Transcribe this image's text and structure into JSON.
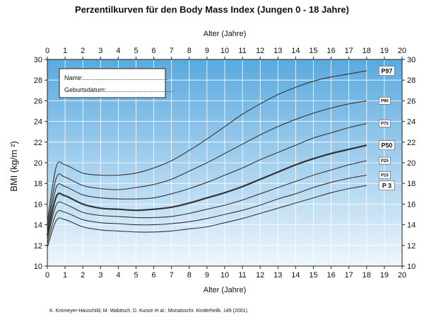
{
  "title": "Perzentilkurven für den Body Mass Index (Jungen 0 - 18 Jahre)",
  "citation": "K. Kromeyer-Hauschild, M. Wabitsch, D. Kunze et al.: Monatsschr. Kinderheilk. 149 (2001).",
  "info_box": {
    "name_label": "Name:................................................",
    "birthdate_label": "Geburtsdatum:......................................"
  },
  "colors": {
    "plot_top": "#5aa9df",
    "plot_bottom": "#eef6fc",
    "curve": "#333333",
    "grid": "#ffffff"
  },
  "chart_data": {
    "type": "line",
    "title": "Perzentilkurven für den Body Mass Index (Jungen 0 - 18 Jahre)",
    "xlabel": "Alter (Jahre)",
    "xlabel_top": "Alter (Jahre)",
    "ylabel": "BMI (kg/m ²)",
    "xlim": [
      0,
      20
    ],
    "ylim": [
      10,
      30
    ],
    "xticks": [
      "0",
      "1",
      "2",
      "3",
      "4",
      "5",
      "6",
      "7",
      "8",
      "9",
      "10",
      "11",
      "12",
      "13",
      "14",
      "15",
      "16",
      "17",
      "18",
      "19",
      "20"
    ],
    "yticks": [
      "10",
      "12",
      "14",
      "16",
      "18",
      "20",
      "22",
      "24",
      "26",
      "28",
      "30"
    ],
    "grid": true,
    "x": [
      0,
      0.5,
      1,
      2,
      3,
      4,
      5,
      6,
      7,
      8,
      9,
      10,
      11,
      12,
      13,
      14,
      15,
      16,
      17,
      18
    ],
    "series": [
      {
        "name": "P97",
        "label": "P97",
        "bold": false,
        "label_size": 9,
        "values": [
          14.3,
          19.6,
          19.8,
          19.0,
          18.8,
          18.8,
          19.0,
          19.5,
          20.2,
          21.2,
          22.3,
          23.5,
          24.7,
          25.7,
          26.6,
          27.3,
          27.9,
          28.3,
          28.6,
          28.9
        ]
      },
      {
        "name": "P90",
        "label": "P90",
        "bold": false,
        "label_size": 6,
        "values": [
          13.8,
          18.5,
          18.6,
          17.8,
          17.5,
          17.4,
          17.6,
          17.9,
          18.4,
          19.2,
          20.0,
          20.9,
          21.8,
          22.7,
          23.5,
          24.2,
          24.8,
          25.3,
          25.7,
          26.0
        ]
      },
      {
        "name": "P75",
        "label": "P75",
        "bold": false,
        "label_size": 6,
        "values": [
          13.4,
          17.6,
          17.7,
          16.9,
          16.6,
          16.5,
          16.5,
          16.6,
          17.0,
          17.5,
          18.1,
          18.8,
          19.5,
          20.3,
          21.0,
          21.7,
          22.4,
          22.9,
          23.4,
          23.8
        ]
      },
      {
        "name": "P50",
        "label": "P50",
        "bold": true,
        "label_size": 9,
        "values": [
          13.0,
          16.7,
          16.8,
          16.0,
          15.6,
          15.5,
          15.4,
          15.5,
          15.7,
          16.1,
          16.6,
          17.1,
          17.7,
          18.4,
          19.1,
          19.8,
          20.4,
          20.9,
          21.3,
          21.7
        ]
      },
      {
        "name": "P25",
        "label": "P25",
        "bold": false,
        "label_size": 6,
        "values": [
          12.6,
          15.9,
          16.0,
          15.2,
          14.9,
          14.8,
          14.7,
          14.7,
          14.8,
          15.1,
          15.5,
          15.9,
          16.4,
          17.0,
          17.6,
          18.2,
          18.8,
          19.3,
          19.8,
          20.2
        ]
      },
      {
        "name": "P10",
        "label": "P10",
        "bold": false,
        "label_size": 6,
        "values": [
          12.2,
          15.1,
          15.2,
          14.5,
          14.2,
          14.1,
          14.0,
          14.0,
          14.1,
          14.3,
          14.6,
          15.0,
          15.4,
          15.9,
          16.5,
          17.0,
          17.6,
          18.1,
          18.5,
          18.8
        ]
      },
      {
        "name": "P3",
        "label": "P 3",
        "bold": false,
        "label_size": 9,
        "values": [
          11.8,
          14.4,
          14.5,
          13.8,
          13.5,
          13.4,
          13.3,
          13.3,
          13.4,
          13.6,
          13.8,
          14.2,
          14.6,
          15.1,
          15.6,
          16.1,
          16.6,
          17.1,
          17.5,
          17.8
        ]
      }
    ]
  }
}
